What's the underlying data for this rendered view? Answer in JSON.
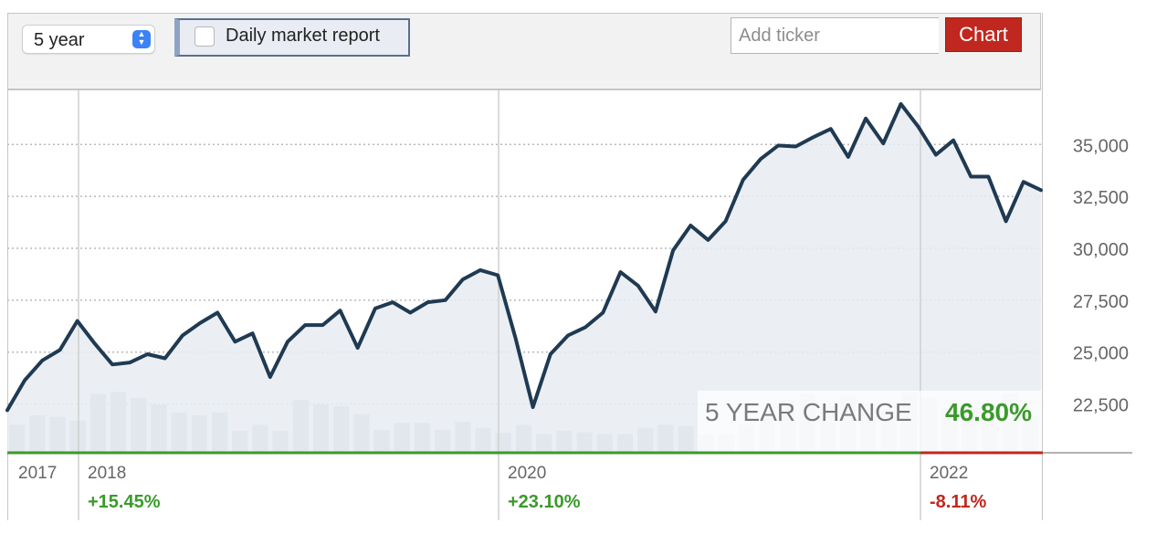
{
  "toolbar": {
    "range_value": "5 year",
    "report_label": "Daily market report",
    "ticker_placeholder": "Add ticker",
    "chart_button_label": "Chart"
  },
  "badge": {
    "label": "5 YEAR CHANGE",
    "value": "46.80%",
    "value_color": "#3a9a2a"
  },
  "colors": {
    "line": "#1f3a52",
    "area": "#e8ecf1",
    "volume": "#b8c6d6",
    "grid": "#b9b9b9",
    "positive": "#3a9a2a",
    "negative": "#c0281f"
  },
  "chart_data": {
    "type": "line",
    "x_tick_labels": [
      "2017",
      "2018",
      "2020",
      "2022"
    ],
    "y_tick_labels": [
      "35,000",
      "32,500",
      "30,000",
      "27,500",
      "25,000",
      "22,500"
    ],
    "y_ticks": [
      35000,
      32500,
      30000,
      27500,
      25000,
      22500
    ],
    "ylim": [
      20150,
      37650
    ],
    "grid": true,
    "year_changes": [
      {
        "label": "+15.45%",
        "color": "#3a9a2a"
      },
      {
        "label": "+23.10%",
        "color": "#3a9a2a"
      },
      {
        "label": "-8.11%",
        "color": "#c0281f"
      }
    ],
    "series": [
      {
        "values": [
          22200,
          23650,
          24600,
          25100,
          26500,
          25400,
          24400,
          24500,
          24900,
          24700,
          25800,
          26400,
          26900,
          25500,
          25900,
          23800,
          25500,
          26300,
          26300,
          27000,
          25200,
          27100,
          27400,
          26900,
          27400,
          27500,
          28500,
          28950,
          28700,
          25700,
          22350,
          24900,
          25800,
          26200,
          26900,
          28850,
          28200,
          26950,
          29900,
          31100,
          30400,
          31300,
          33300,
          34300,
          34950,
          34900,
          35350,
          35750,
          34400,
          36250,
          35050,
          36950,
          35850,
          34500,
          35200,
          33450,
          33450,
          31300,
          33200,
          32800
        ]
      }
    ],
    "volume_relative": [
      0.45,
      0.6,
      0.58,
      0.52,
      0.95,
      0.98,
      0.88,
      0.78,
      0.65,
      0.6,
      0.65,
      0.35,
      0.45,
      0.35,
      0.85,
      0.78,
      0.75,
      0.62,
      0.37,
      0.48,
      0.48,
      0.37,
      0.5,
      0.4,
      0.32,
      0.45,
      0.3,
      0.35,
      0.33,
      0.3,
      0.3,
      0.4,
      0.45,
      0.43,
      0.3,
      0.3,
      0.45,
      0.6,
      0.85,
      0.95,
      0.75,
      0.9,
      0.8,
      0.68,
      0.97,
      0.88,
      0.72,
      0.75,
      0.78,
      0.95,
      0.6
    ]
  }
}
